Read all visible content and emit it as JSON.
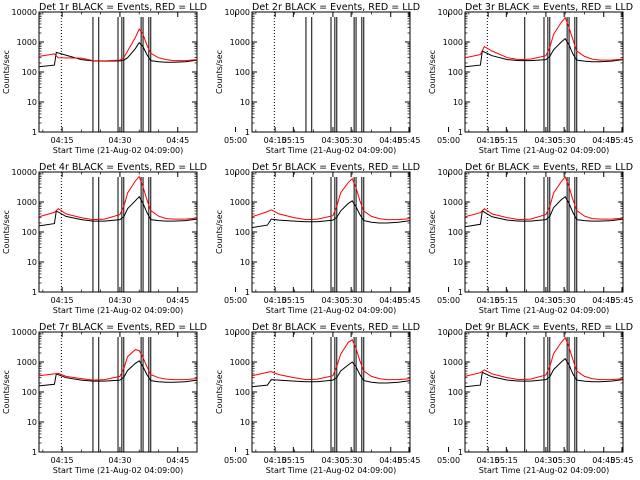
{
  "common": {
    "type": "line",
    "ylabel": "Counts/sec",
    "xlabel": "Start Time (21-Aug-02 04:09:00)",
    "x_ticks": [
      "04:15",
      "04:30",
      "04:45",
      "05:00",
      "05:15",
      "05:30",
      "05:45"
    ],
    "y_ticks": [
      "1",
      "10",
      "100",
      "1000",
      "10000"
    ],
    "y_log": true,
    "ylim": [
      1,
      10000
    ],
    "xlim_minutes_after_0400": [
      9,
      50
    ],
    "series_colors": {
      "events": "#000000",
      "lld": "#ff0000"
    }
  },
  "chart_data": [
    {
      "title": "Det 1r  BLACK = Events, RED = LLD",
      "type": "line",
      "has_data": true,
      "series": [
        {
          "key": "events",
          "x": [
            9,
            13,
            13.5,
            20,
            23,
            26,
            30,
            31,
            32,
            34,
            35,
            36,
            37,
            38,
            40,
            42,
            44,
            47,
            50
          ],
          "values": [
            150,
            170,
            450,
            260,
            235,
            230,
            235,
            250,
            300,
            600,
            950,
            700,
            380,
            240,
            220,
            210,
            210,
            220,
            250
          ]
        },
        {
          "key": "lld",
          "x": [
            9,
            13,
            14,
            20,
            23,
            26,
            30,
            31,
            32,
            34,
            35,
            36,
            37,
            38,
            40,
            42,
            44,
            47,
            50
          ],
          "values": [
            330,
            400,
            300,
            290,
            240,
            235,
            250,
            300,
            500,
            1400,
            2700,
            1800,
            800,
            420,
            300,
            260,
            240,
            240,
            260
          ]
        }
      ],
      "vlines_solid": [
        23,
        24.5,
        29.5,
        30.5,
        31,
        35.5,
        36,
        37.5,
        38
      ],
      "vlines_dotted": [
        14.8
      ]
    },
    {
      "title": "Det 2r  BLACK = Events, RED = LLD",
      "type": "line",
      "has_data": false,
      "series": [],
      "vlines_solid": [
        23,
        24.5,
        29.5,
        30.5,
        31,
        35.5,
        36,
        37.5,
        38
      ],
      "vlines_dotted": [
        14.8
      ]
    },
    {
      "title": "Det 3r  BLACK = Events, RED = LLD",
      "type": "line",
      "has_data": true,
      "series": [
        {
          "key": "events",
          "x": [
            9,
            13,
            13.5,
            16,
            20,
            23,
            26,
            30,
            31,
            32,
            34,
            35,
            36,
            37,
            38,
            40,
            42,
            44,
            47,
            50
          ],
          "values": [
            150,
            170,
            500,
            350,
            260,
            240,
            240,
            260,
            330,
            550,
            1000,
            1300,
            800,
            400,
            250,
            230,
            220,
            220,
            230,
            260
          ]
        },
        {
          "key": "lld",
          "x": [
            9,
            13,
            14,
            16,
            20,
            23,
            26,
            30,
            31,
            32,
            34,
            35,
            36,
            37,
            38,
            40,
            42,
            44,
            47,
            50
          ],
          "values": [
            300,
            380,
            700,
            500,
            300,
            260,
            270,
            350,
            650,
            1800,
            4500,
            6500,
            3000,
            1200,
            500,
            330,
            270,
            250,
            250,
            270
          ]
        }
      ],
      "vlines_solid": [
        24.5,
        29.5,
        30.5,
        31,
        35.5,
        36,
        37.5,
        38
      ],
      "vlines_dotted": [
        14.8
      ]
    },
    {
      "title": "Det 4r  BLACK = Events, RED = LLD",
      "type": "line",
      "has_data": true,
      "series": [
        {
          "key": "events",
          "x": [
            9,
            13,
            13.5,
            16,
            20,
            23,
            26,
            30,
            31,
            32,
            34,
            35,
            36,
            37,
            38,
            40,
            42,
            44,
            47,
            50
          ],
          "values": [
            160,
            190,
            500,
            330,
            260,
            230,
            230,
            260,
            320,
            600,
            1100,
            1500,
            900,
            450,
            260,
            240,
            230,
            230,
            240,
            270
          ]
        },
        {
          "key": "lld",
          "x": [
            9,
            13,
            14,
            16,
            20,
            23,
            26,
            30,
            31,
            32,
            34,
            35,
            36,
            37,
            38,
            40,
            42,
            44,
            47,
            50
          ],
          "values": [
            320,
            450,
            600,
            400,
            300,
            260,
            270,
            380,
            700,
            2000,
            5000,
            7000,
            3200,
            1200,
            520,
            340,
            280,
            270,
            270,
            290
          ]
        }
      ],
      "vlines_solid": [
        23,
        24.5,
        29.5,
        30.5,
        31,
        35.5,
        36,
        37.5,
        38
      ],
      "vlines_dotted": [
        14.8
      ]
    },
    {
      "title": "Det 5r  BLACK = Events, RED = LLD",
      "type": "line",
      "has_data": true,
      "series": [
        {
          "key": "events",
          "x": [
            9,
            13,
            14,
            16,
            20,
            23,
            26,
            30,
            31,
            32,
            34,
            35,
            36,
            37,
            38,
            40,
            42,
            44,
            47,
            50
          ],
          "values": [
            140,
            170,
            270,
            250,
            230,
            220,
            220,
            250,
            310,
            500,
            900,
            1100,
            700,
            380,
            240,
            210,
            200,
            200,
            210,
            240
          ]
        },
        {
          "key": "lld",
          "x": [
            9,
            13,
            14,
            16,
            20,
            23,
            26,
            30,
            31,
            32,
            34,
            35,
            36,
            37,
            38,
            40,
            42,
            44,
            47,
            50
          ],
          "values": [
            320,
            480,
            550,
            400,
            300,
            260,
            270,
            350,
            700,
            2000,
            4500,
            6000,
            3000,
            1100,
            500,
            330,
            280,
            260,
            260,
            280
          ]
        }
      ],
      "vlines_solid": [
        24.5,
        29.5,
        30.5,
        31,
        35.5,
        36,
        37.5,
        38
      ],
      "vlines_dotted": [
        14.8
      ]
    },
    {
      "title": "Det 6r  BLACK = Events, RED = LLD",
      "type": "line",
      "has_data": true,
      "series": [
        {
          "key": "events",
          "x": [
            9,
            13,
            13.5,
            16,
            20,
            23,
            26,
            30,
            31,
            32,
            34,
            35,
            36,
            37,
            38,
            40,
            42,
            44,
            47,
            50
          ],
          "values": [
            150,
            180,
            500,
            320,
            250,
            230,
            230,
            260,
            330,
            650,
            1200,
            1500,
            900,
            450,
            260,
            240,
            230,
            230,
            240,
            270
          ]
        },
        {
          "key": "lld",
          "x": [
            9,
            13,
            14,
            16,
            20,
            23,
            26,
            30,
            31,
            32,
            34,
            35,
            36,
            37,
            38,
            40,
            42,
            44,
            47,
            50
          ],
          "values": [
            320,
            440,
            600,
            400,
            300,
            260,
            270,
            380,
            700,
            2000,
            4800,
            6800,
            3200,
            1200,
            520,
            340,
            280,
            270,
            270,
            290
          ]
        }
      ],
      "vlines_solid": [
        24.5,
        29.5,
        30.5,
        31,
        35.5,
        36,
        37.5,
        38
      ],
      "vlines_dotted": [
        14.8
      ]
    },
    {
      "title": "Det 7r  BLACK = Events, RED = LLD",
      "type": "line",
      "has_data": true,
      "series": [
        {
          "key": "events",
          "x": [
            9,
            13,
            13.5,
            16,
            20,
            23,
            26,
            30,
            31,
            32,
            34,
            35,
            36,
            37,
            38,
            40,
            42,
            44,
            47,
            50
          ],
          "values": [
            160,
            180,
            400,
            300,
            250,
            230,
            230,
            250,
            310,
            520,
            900,
            1100,
            700,
            380,
            240,
            220,
            210,
            210,
            220,
            250
          ]
        },
        {
          "key": "lld",
          "x": [
            9,
            13,
            14,
            16,
            20,
            23,
            26,
            30,
            31,
            32,
            34,
            35,
            36,
            37,
            38,
            40,
            42,
            44,
            47,
            50
          ],
          "values": [
            350,
            400,
            420,
            330,
            280,
            250,
            260,
            330,
            600,
            1500,
            2600,
            2400,
            1400,
            700,
            380,
            300,
            270,
            260,
            260,
            280
          ]
        }
      ],
      "vlines_solid": [
        23,
        24.5,
        29.5,
        30.5,
        31,
        35.5,
        36,
        37.5,
        38
      ],
      "vlines_dotted": [
        14.8
      ]
    },
    {
      "title": "Det 8r  BLACK = Events, RED = LLD",
      "type": "line",
      "has_data": true,
      "series": [
        {
          "key": "events",
          "x": [
            9,
            13,
            14,
            16,
            20,
            23,
            26,
            30,
            31,
            32,
            34,
            35,
            36,
            37,
            38,
            40,
            42,
            44,
            47,
            50
          ],
          "values": [
            150,
            170,
            260,
            250,
            230,
            220,
            220,
            250,
            300,
            500,
            800,
            1000,
            700,
            380,
            240,
            210,
            200,
            200,
            210,
            240
          ]
        },
        {
          "key": "lld",
          "x": [
            9,
            13,
            14,
            16,
            20,
            23,
            26,
            30,
            31,
            32,
            34,
            35,
            36,
            37,
            38,
            40,
            42,
            44,
            47,
            50
          ],
          "values": [
            350,
            450,
            480,
            380,
            300,
            260,
            270,
            350,
            700,
            1800,
            4500,
            5500,
            2800,
            1100,
            500,
            330,
            280,
            260,
            260,
            280
          ]
        }
      ],
      "vlines_solid": [
        24.5,
        29.5,
        30.5,
        31,
        35.5,
        36,
        37.5,
        38
      ],
      "vlines_dotted": [
        14.8
      ]
    },
    {
      "title": "Det 9r  BLACK = Events, RED = LLD",
      "type": "line",
      "has_data": true,
      "series": [
        {
          "key": "events",
          "x": [
            9,
            13,
            13.5,
            16,
            20,
            23,
            26,
            30,
            31,
            32,
            34,
            35,
            36,
            37,
            38,
            40,
            42,
            44,
            47,
            50
          ],
          "values": [
            150,
            170,
            450,
            320,
            250,
            230,
            230,
            260,
            320,
            560,
            1000,
            1300,
            800,
            400,
            250,
            230,
            220,
            220,
            230,
            260
          ]
        },
        {
          "key": "lld",
          "x": [
            9,
            13,
            14,
            16,
            20,
            23,
            26,
            30,
            31,
            32,
            34,
            35,
            36,
            37,
            38,
            40,
            42,
            44,
            47,
            50
          ],
          "values": [
            330,
            440,
            550,
            400,
            300,
            260,
            270,
            370,
            700,
            1900,
            4500,
            6500,
            3100,
            1200,
            500,
            330,
            280,
            260,
            260,
            280
          ]
        }
      ],
      "vlines_solid": [
        24.5,
        29.5,
        30.5,
        31,
        35.5,
        36,
        37.5,
        38
      ],
      "vlines_dotted": [
        14.8
      ]
    }
  ]
}
